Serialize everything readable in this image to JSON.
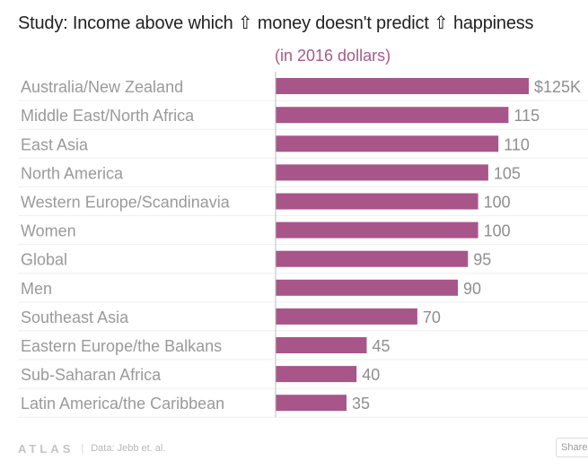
{
  "header": {
    "title": "Study: Income above which ⇧ money doesn't predict ⇧ happiness",
    "subtitle": "(in 2016 dollars)"
  },
  "colors": {
    "bar": "#a8558a",
    "label": "#9a9a9a",
    "value": "#8f8f8f",
    "axis": "#bfbfbf",
    "grid": "#efefef"
  },
  "chart_data": {
    "type": "bar",
    "orientation": "horizontal",
    "title": "Study: Income above which ⇧ money doesn't predict ⇧ happiness",
    "subtitle": "(in 2016 dollars)",
    "categories": [
      "Australia/New Zealand",
      "Middle East/North Africa",
      "East Asia",
      "North America",
      "Western Europe/Scandinavia",
      "Women",
      "Global",
      "Men",
      "Southeast Asia",
      "Eastern Europe/the Balkans",
      "Sub-Saharan Africa",
      "Latin America/the Caribbean"
    ],
    "values": [
      125,
      115,
      110,
      105,
      100,
      100,
      95,
      90,
      70,
      45,
      40,
      35
    ],
    "value_labels": [
      "$125K",
      "115",
      "110",
      "105",
      "100",
      "100",
      "95",
      "90",
      "70",
      "45",
      "40",
      "35"
    ],
    "xlim": [
      0,
      125
    ],
    "grid": true
  },
  "footer": {
    "logo": "ATLAS",
    "separator": "|",
    "source": "Data: Jebb et. al.",
    "share_label": "Share"
  }
}
